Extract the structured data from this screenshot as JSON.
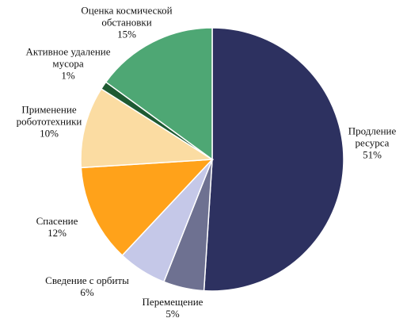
{
  "chart_data": {
    "type": "pie",
    "categories": [
      "Продление ресурса",
      "Перемещение",
      "Сведение с орбиты",
      "Спасение",
      "Применение робототехники",
      "Активное удаление мусора",
      "Оценка космической обстановки"
    ],
    "values": [
      51,
      5,
      6,
      12,
      10,
      1,
      15
    ],
    "value_labels": [
      "51%",
      "5%",
      "6%",
      "12%",
      "10%",
      "1%",
      "15%"
    ],
    "colors": [
      "#2d3160",
      "#6e7191",
      "#c5c8e8",
      "#ffa21a",
      "#fbdca2",
      "#1e5a32",
      "#4ea774"
    ]
  }
}
